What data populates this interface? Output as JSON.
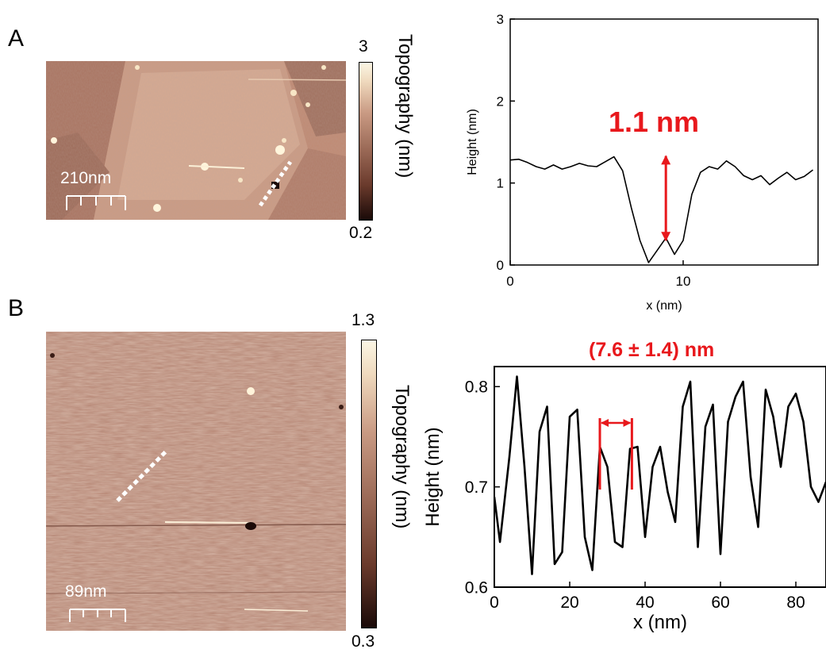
{
  "panels": [
    {
      "letter": "A",
      "scale_bar_label": "210nm",
      "colorbar": {
        "min_label": "0.2",
        "max_label": "3",
        "title": "Topography (nm)"
      }
    },
    {
      "letter": "B",
      "scale_bar_label": "89nm",
      "colorbar": {
        "min_label": "0.3",
        "max_label": "1.3",
        "title": "Topography (nm)"
      }
    }
  ],
  "colors": {
    "annotation": "#e8181c",
    "line": "#000000",
    "dotted_marker": "#ffffff"
  },
  "chart_data": [
    {
      "type": "line",
      "panel": "A",
      "xlabel": "x (nm)",
      "ylabel": "Height (nm)",
      "xlim": [
        0,
        17.8
      ],
      "ylim": [
        0,
        3
      ],
      "xticks": [
        0,
        10
      ],
      "yticks": [
        0,
        1,
        2,
        3
      ],
      "grid": false,
      "annotation": {
        "text": "1.1 nm",
        "x": 9,
        "y_from": 0.3,
        "y_to": 1.33
      },
      "x": [
        0,
        0.5,
        1,
        1.5,
        2,
        2.5,
        3,
        3.5,
        4,
        4.5,
        5,
        5.5,
        6,
        6.5,
        7,
        7.5,
        8,
        8.5,
        9,
        9.5,
        10,
        10.5,
        11,
        11.5,
        12,
        12.5,
        13,
        13.5,
        14,
        14.5,
        15,
        15.5,
        16,
        16.5,
        17,
        17.5
      ],
      "y": [
        1.28,
        1.29,
        1.25,
        1.2,
        1.17,
        1.22,
        1.17,
        1.2,
        1.24,
        1.21,
        1.2,
        1.26,
        1.32,
        1.15,
        0.7,
        0.3,
        0.03,
        0.18,
        0.33,
        0.13,
        0.3,
        0.86,
        1.13,
        1.2,
        1.17,
        1.27,
        1.2,
        1.09,
        1.04,
        1.09,
        0.98,
        1.06,
        1.13,
        1.04,
        1.08,
        1.16
      ]
    },
    {
      "type": "line",
      "panel": "B",
      "xlabel": "x (nm)",
      "ylabel": "Height (nm)",
      "xlim": [
        0,
        88
      ],
      "ylim": [
        0.6,
        0.82
      ],
      "xticks": [
        0,
        20,
        40,
        60,
        80
      ],
      "yticks": [
        0.6,
        0.7,
        0.8
      ],
      "grid": false,
      "annotation": {
        "text": "(7.6 ± 1.4) nm",
        "x_from": 28,
        "x_to": 36.5
      },
      "x": [
        0,
        1.5,
        4,
        6,
        8,
        10,
        12,
        14,
        16,
        18,
        20,
        22,
        24,
        26,
        28,
        30,
        32,
        34,
        36,
        38,
        40,
        42,
        44,
        46,
        48,
        50,
        52,
        54,
        56,
        58,
        60,
        62,
        64,
        66,
        68,
        70,
        72,
        74,
        76,
        78,
        80,
        82,
        84,
        86,
        88
      ],
      "y": [
        0.69,
        0.645,
        0.73,
        0.81,
        0.72,
        0.613,
        0.755,
        0.78,
        0.623,
        0.635,
        0.77,
        0.777,
        0.65,
        0.617,
        0.74,
        0.72,
        0.645,
        0.64,
        0.738,
        0.74,
        0.65,
        0.72,
        0.74,
        0.695,
        0.665,
        0.78,
        0.805,
        0.64,
        0.76,
        0.782,
        0.633,
        0.765,
        0.79,
        0.805,
        0.71,
        0.66,
        0.797,
        0.77,
        0.72,
        0.78,
        0.793,
        0.765,
        0.7,
        0.685,
        0.705
      ]
    }
  ]
}
